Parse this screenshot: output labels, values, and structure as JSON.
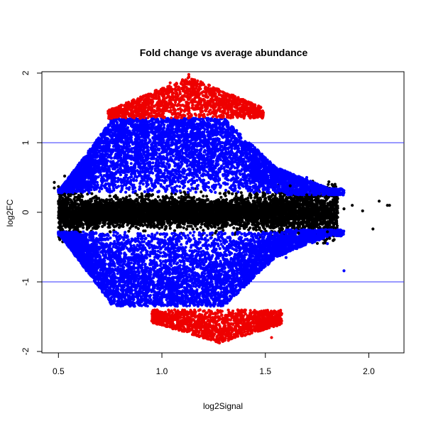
{
  "chart_data": {
    "type": "scatter",
    "title": "Fold change vs average abundance",
    "xlabel": "log2Signal",
    "ylabel": "log2FC",
    "xlim": [
      0.42,
      2.17
    ],
    "ylim": [
      -2.02,
      2.02
    ],
    "x_ticks": [
      0.5,
      1.0,
      1.5,
      2.0
    ],
    "x_tick_labels": [
      "0.5",
      "1.0",
      "1.5",
      "2.0"
    ],
    "y_ticks": [
      -2,
      -1,
      0,
      1,
      2
    ],
    "y_tick_labels": [
      "-2",
      "-1",
      "0",
      "1",
      "2"
    ],
    "grid": false,
    "reference_lines": [
      -1,
      1
    ],
    "colors": {
      "reference_line": "#3333ff",
      "center_points": "#000000",
      "moderate_points": "#0000ff",
      "high_points": "#ee0000"
    },
    "series": [
      {
        "color": "#000000",
        "description_range": "|log2FC| < 0.35 for most points, with sparse wider points at low and high signal",
        "x_range": [
          0.46,
          2.1
        ],
        "y_range": [
          -0.35,
          0.45
        ]
      },
      {
        "color": "#0000ff",
        "description_range": "moderate fold change band",
        "x_range": [
          0.5,
          1.89
        ],
        "y_range": [
          -1.4,
          1.35
        ]
      },
      {
        "color": "#ee0000",
        "description_range": "high absolute fold change band",
        "x_range": [
          0.72,
          1.58
        ],
        "y_range_positive": [
          1.35,
          2.02
        ],
        "y_range_negative": [
          -1.85,
          -1.4
        ]
      }
    ],
    "sample_points": [
      {
        "x": 0.48,
        "y": 0.43,
        "color": "#000000"
      },
      {
        "x": 0.5,
        "y": -0.08,
        "color": "#000000"
      },
      {
        "x": 0.53,
        "y": 0.26,
        "color": "#000000"
      },
      {
        "x": 0.55,
        "y": -0.14,
        "color": "#000000"
      },
      {
        "x": 0.6,
        "y": 0.2,
        "color": "#000000"
      },
      {
        "x": 0.7,
        "y": 0.05,
        "color": "#000000"
      },
      {
        "x": 0.8,
        "y": -0.02,
        "color": "#000000"
      },
      {
        "x": 0.9,
        "y": 0.01,
        "color": "#000000"
      },
      {
        "x": 1.0,
        "y": 0.0,
        "color": "#000000"
      },
      {
        "x": 1.1,
        "y": 0.04,
        "color": "#000000"
      },
      {
        "x": 1.2,
        "y": -0.01,
        "color": "#000000"
      },
      {
        "x": 1.3,
        "y": 0.03,
        "color": "#000000"
      },
      {
        "x": 1.4,
        "y": -0.05,
        "color": "#000000"
      },
      {
        "x": 1.5,
        "y": 0.08,
        "color": "#000000"
      },
      {
        "x": 1.6,
        "y": -0.1,
        "color": "#000000"
      },
      {
        "x": 1.7,
        "y": 0.18,
        "color": "#000000"
      },
      {
        "x": 1.8,
        "y": -0.28,
        "color": "#000000"
      },
      {
        "x": 1.92,
        "y": 0.1,
        "color": "#000000"
      },
      {
        "x": 2.02,
        "y": -0.24,
        "color": "#000000"
      },
      {
        "x": 2.09,
        "y": 0.1,
        "color": "#000000"
      },
      {
        "x": 0.58,
        "y": 0.6,
        "color": "#0000ff"
      },
      {
        "x": 0.65,
        "y": -0.5,
        "color": "#0000ff"
      },
      {
        "x": 0.75,
        "y": 1.1,
        "color": "#0000ff"
      },
      {
        "x": 0.8,
        "y": -0.9,
        "color": "#0000ff"
      },
      {
        "x": 0.9,
        "y": 1.25,
        "color": "#0000ff"
      },
      {
        "x": 1.0,
        "y": -1.3,
        "color": "#0000ff"
      },
      {
        "x": 1.1,
        "y": 1.3,
        "color": "#0000ff"
      },
      {
        "x": 1.2,
        "y": -1.2,
        "color": "#0000ff"
      },
      {
        "x": 1.3,
        "y": 1.2,
        "color": "#0000ff"
      },
      {
        "x": 1.4,
        "y": -1.0,
        "color": "#0000ff"
      },
      {
        "x": 1.5,
        "y": 0.75,
        "color": "#0000ff"
      },
      {
        "x": 1.6,
        "y": -0.65,
        "color": "#0000ff"
      },
      {
        "x": 1.7,
        "y": 0.5,
        "color": "#0000ff"
      },
      {
        "x": 1.8,
        "y": -0.45,
        "color": "#0000ff"
      },
      {
        "x": 1.88,
        "y": -0.84,
        "color": "#0000ff"
      },
      {
        "x": 0.77,
        "y": 1.42,
        "color": "#ee0000"
      },
      {
        "x": 0.88,
        "y": 1.58,
        "color": "#ee0000"
      },
      {
        "x": 0.97,
        "y": 1.75,
        "color": "#ee0000"
      },
      {
        "x": 1.04,
        "y": 1.86,
        "color": "#ee0000"
      },
      {
        "x": 1.13,
        "y": 1.98,
        "color": "#ee0000"
      },
      {
        "x": 1.22,
        "y": 1.65,
        "color": "#ee0000"
      },
      {
        "x": 1.34,
        "y": 1.42,
        "color": "#ee0000"
      },
      {
        "x": 0.98,
        "y": -1.45,
        "color": "#ee0000"
      },
      {
        "x": 1.08,
        "y": -1.58,
        "color": "#ee0000"
      },
      {
        "x": 1.18,
        "y": -1.72,
        "color": "#ee0000"
      },
      {
        "x": 1.28,
        "y": -1.8,
        "color": "#ee0000"
      },
      {
        "x": 1.4,
        "y": -1.62,
        "color": "#ee0000"
      },
      {
        "x": 1.53,
        "y": -1.8,
        "color": "#ee0000"
      }
    ]
  }
}
